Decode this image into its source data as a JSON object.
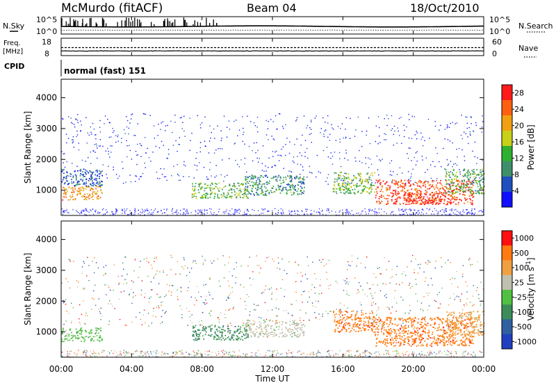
{
  "header": {
    "station": "McMurdo (fitACF)",
    "beam": "Beam 04",
    "date": "18/Oct/2010"
  },
  "noise_panel": {
    "left_label": "N.Sky",
    "right_label": "N.Search",
    "ticks": [
      "10^5",
      "10^0"
    ]
  },
  "freq_panel": {
    "left_label_1": "Freq.",
    "left_label_2": "[MHz]",
    "left_ticks": [
      "18",
      "8"
    ],
    "right_label": "Nave",
    "right_ticks": [
      "60",
      "0"
    ]
  },
  "cpid": {
    "label": "CPID",
    "value": "normal (fast) 151"
  },
  "chart_data": [
    {
      "type": "heatmap",
      "name": "power",
      "ylabel": "Slant Range [km]",
      "xlabel": "Time UT",
      "x_tick_labels": [
        "00:00",
        "04:00",
        "08:00",
        "12:00",
        "16:00",
        "20:00",
        "00:00"
      ],
      "x_ticks_hours": [
        0,
        4,
        8,
        12,
        16,
        20,
        24
      ],
      "ylim": [
        180,
        4600
      ],
      "y_ticks": [
        1000,
        2000,
        3000,
        4000
      ],
      "colorbar": {
        "label": "Power [dB]",
        "ticks": [
          4,
          8,
          12,
          16,
          20,
          24,
          28
        ],
        "range": [
          0,
          30
        ],
        "colors": [
          "#1010ff",
          "#2050c0",
          "#3f8f6a",
          "#30b030",
          "#c8d018",
          "#f0a010",
          "#ff6010",
          "#ff1a1a"
        ]
      },
      "echo_regions": [
        {
          "t0": 0.0,
          "t1": 2.3,
          "r0": 700,
          "r1": 1150,
          "level": 22
        },
        {
          "t0": 0.0,
          "t1": 2.3,
          "r0": 1150,
          "r1": 1700,
          "level": 6
        },
        {
          "t0": 7.4,
          "t1": 10.6,
          "r0": 750,
          "r1": 1250,
          "level": 13
        },
        {
          "t0": 10.4,
          "t1": 13.8,
          "r0": 850,
          "r1": 1500,
          "level": 10
        },
        {
          "t0": 15.4,
          "t1": 17.8,
          "r0": 900,
          "r1": 1600,
          "level": 14
        },
        {
          "t0": 17.8,
          "t1": 23.4,
          "r0": 550,
          "r1": 1350,
          "level": 26
        },
        {
          "t0": 19.4,
          "t1": 21.6,
          "r0": 550,
          "r1": 900,
          "level": 29
        },
        {
          "t0": 21.8,
          "t1": 24.0,
          "r0": 900,
          "r1": 1700,
          "level": 12
        }
      ]
    },
    {
      "type": "heatmap",
      "name": "velocity",
      "ylabel": "Slant Range [km]",
      "xlabel": "Time UT",
      "x_tick_labels": [
        "00:00",
        "04:00",
        "08:00",
        "12:00",
        "16:00",
        "20:00",
        "00:00"
      ],
      "x_ticks_hours": [
        0,
        4,
        8,
        12,
        16,
        20,
        24
      ],
      "ylim": [
        180,
        4600
      ],
      "y_ticks": [
        1000,
        2000,
        3000,
        4000
      ],
      "colorbar": {
        "label": "Velocity [m s",
        "label_exponent": "-1",
        "ticks": [
          "1000",
          "500",
          "100",
          "25",
          "-25",
          "-100",
          "-500",
          "-1000"
        ],
        "colors": [
          "#2040c0",
          "#3060a0",
          "#3c8c5a",
          "#50c040",
          "#c0c0b0",
          "#f0a040",
          "#ff7a10",
          "#ff1010"
        ]
      },
      "echo_regions": [
        {
          "t0": 0.0,
          "t1": 2.3,
          "r0": 700,
          "r1": 1150,
          "level": 3
        },
        {
          "t0": 7.4,
          "t1": 10.6,
          "r0": 750,
          "r1": 1250,
          "level": 2
        },
        {
          "t0": 10.4,
          "t1": 13.8,
          "r0": 850,
          "r1": 1400,
          "level": 4
        },
        {
          "t0": 15.4,
          "t1": 17.8,
          "r0": 1000,
          "r1": 1700,
          "level": 6
        },
        {
          "t0": 17.8,
          "t1": 23.4,
          "r0": 550,
          "r1": 1500,
          "level": 6
        },
        {
          "t0": 21.8,
          "t1": 24.0,
          "r0": 900,
          "r1": 1700,
          "level": 5
        }
      ]
    }
  ]
}
